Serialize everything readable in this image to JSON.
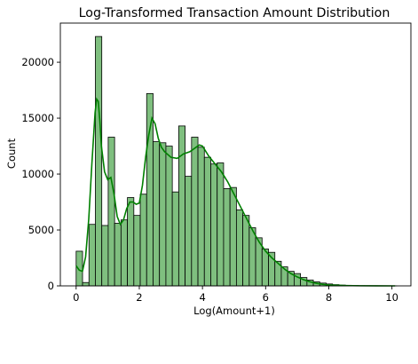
{
  "chart_data": {
    "type": "bar",
    "title": "Log-Transformed Transaction Amount Distribution",
    "xlabel": "Log(Amount+1)",
    "ylabel": "Count",
    "xlim": [
      -0.5,
      10.6
    ],
    "ylim": [
      0,
      23500
    ],
    "xticks": [
      0,
      2,
      4,
      6,
      8,
      10
    ],
    "yticks": [
      0,
      5000,
      10000,
      15000,
      20000
    ],
    "bin_width": 0.203,
    "bin_start": 0.0,
    "bar_color": "#7fbf7f",
    "bar_edge_color": "#000000",
    "kde_color": "#008000",
    "counts": [
      3100,
      300,
      5500,
      22300,
      5400,
      13300,
      5600,
      5900,
      7900,
      6300,
      8200,
      17200,
      12900,
      12800,
      12500,
      8400,
      14300,
      9800,
      13300,
      12400,
      11500,
      10900,
      11000,
      8700,
      8800,
      6800,
      6300,
      5200,
      4300,
      3300,
      3000,
      2200,
      1700,
      1300,
      1100,
      750,
      520,
      360,
      250,
      170,
      110,
      70,
      50,
      30,
      20,
      15,
      10,
      8,
      5,
      3
    ],
    "kde": {
      "x": [
        0.0,
        0.1,
        0.2,
        0.3,
        0.4,
        0.5,
        0.6,
        0.65,
        0.7,
        0.75,
        0.8,
        0.9,
        1.0,
        1.1,
        1.2,
        1.3,
        1.4,
        1.5,
        1.6,
        1.7,
        1.8,
        1.9,
        2.0,
        2.1,
        2.2,
        2.3,
        2.4,
        2.5,
        2.6,
        2.7,
        2.8,
        3.0,
        3.2,
        3.4,
        3.6,
        3.8,
        3.9,
        4.0,
        4.2,
        4.4,
        4.6,
        4.8,
        5.0,
        5.2,
        5.4,
        5.6,
        5.8,
        6.0,
        6.2,
        6.4,
        6.6,
        6.8,
        7.0,
        7.2,
        7.4,
        7.6,
        7.8,
        8.0,
        8.5,
        9.0,
        9.5,
        10.1
      ],
      "y": [
        1800,
        1400,
        1300,
        2600,
        6000,
        11000,
        15500,
        16700,
        16500,
        14800,
        12500,
        10200,
        9500,
        9700,
        8200,
        6200,
        5500,
        5900,
        6900,
        7500,
        7500,
        7300,
        7400,
        9000,
        11500,
        13500,
        15000,
        14500,
        13200,
        12400,
        12000,
        11500,
        11400,
        11800,
        12000,
        12400,
        12600,
        12500,
        11600,
        10900,
        10200,
        9300,
        8200,
        7100,
        6000,
        4900,
        3900,
        3100,
        2500,
        2000,
        1500,
        1100,
        800,
        560,
        370,
        230,
        140,
        80,
        30,
        10,
        5,
        0
      ]
    }
  }
}
